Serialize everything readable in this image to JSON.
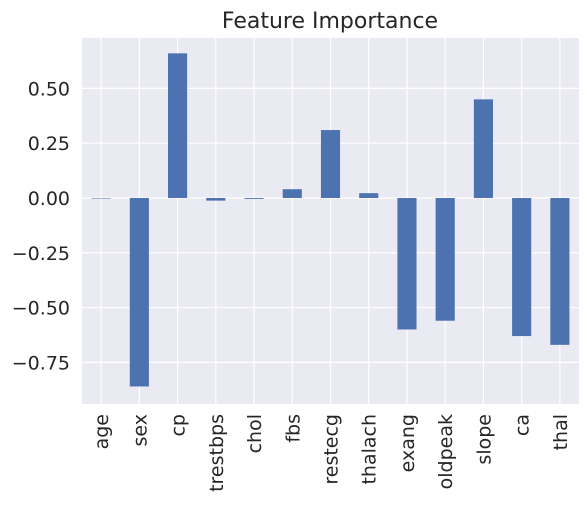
{
  "chart_data": {
    "type": "bar",
    "title": "Feature Importance",
    "xlabel": "",
    "ylabel": "",
    "categories": [
      "age",
      "sex",
      "cp",
      "trestbps",
      "chol",
      "fbs",
      "restecg",
      "thalach",
      "exang",
      "oldpeak",
      "slope",
      "ca",
      "thal"
    ],
    "values": [
      0.0,
      -0.86,
      0.66,
      -0.012,
      -0.004,
      0.04,
      0.31,
      0.022,
      -0.6,
      -0.56,
      0.45,
      -0.63,
      -0.67
    ],
    "ylim": [
      -0.94,
      0.73
    ],
    "yticks": [
      -0.75,
      -0.5,
      -0.25,
      0.0,
      0.25,
      0.5
    ],
    "ytick_labels": [
      "−0.75",
      "−0.50",
      "−0.25",
      "0.00",
      "0.25",
      "0.50"
    ],
    "grid": true,
    "legend": "none",
    "colors": {
      "bar": "#4c72b0",
      "background": "#eaeaf2",
      "grid": "#ffffff",
      "text": "#262626"
    }
  }
}
